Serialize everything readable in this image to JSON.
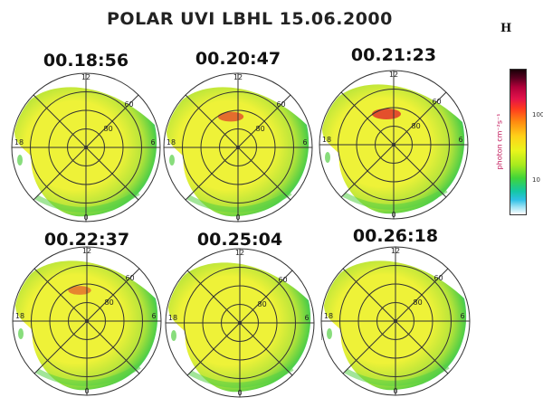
{
  "figure": {
    "title": "POLAR UVI LBHL 15.06.2000",
    "colorbar": {
      "letter": "H",
      "unit_label": "photon cm⁻²s⁻¹",
      "tick_high": "100",
      "tick_low": "10",
      "colors": [
        "#1a0008",
        "#b0003a",
        "#ff3a1e",
        "#ffd118",
        "#a6ea1e",
        "#14c7a4",
        "#9fe3f4",
        "#ffffff"
      ]
    },
    "grid_labels": {
      "lat_outer": "60",
      "lat_inner": "80",
      "mlt_top": "12",
      "mlt_right": "6",
      "mlt_left": "18",
      "mlt_bottom": "0"
    },
    "panels": [
      {
        "time": "00.18:56",
        "spot_intensity": 0.0
      },
      {
        "time": "00.20:47",
        "spot_intensity": 0.7
      },
      {
        "time": "00.21:23",
        "spot_intensity": 1.0
      },
      {
        "time": "00.22:37",
        "spot_intensity": 0.45
      },
      {
        "time": "00.25:04",
        "spot_intensity": 0.0
      },
      {
        "time": "00.26:18",
        "spot_intensity": 0.0
      }
    ],
    "palette": {
      "yellow": "#eef238",
      "yellow_green": "#b6e43a",
      "green": "#55cf45",
      "teal": "#2cc4a4",
      "red": "#e0342a",
      "grid": "#333333"
    }
  }
}
